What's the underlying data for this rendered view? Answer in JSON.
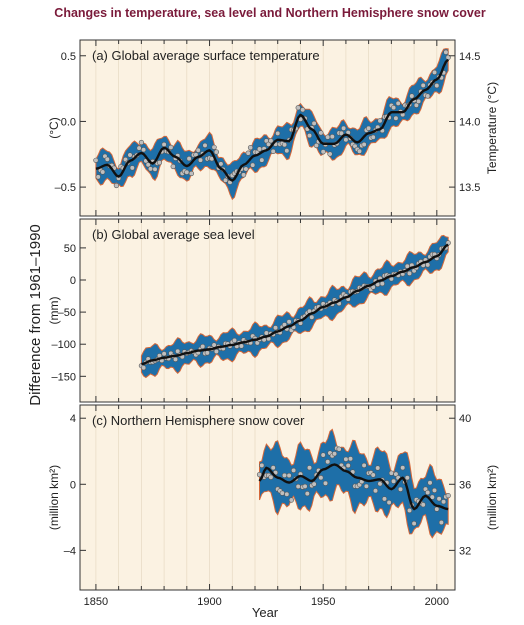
{
  "figure_title": "Changes in temperature, sea level and Northern Hemisphere snow cover",
  "shared_ylabel": "Difference from 1961–1990",
  "shared_xlabel": "Year",
  "x_ticks": [
    "1850",
    "1900",
    "1950",
    "2000"
  ],
  "colors": {
    "panel_bg": "#fbf2e2",
    "band": "#1e6fa8",
    "band_edge": "#d4683a",
    "line": "#111111",
    "point_fill": "#bfbfbf",
    "title": "#7a1a3a"
  },
  "chart_data": [
    {
      "type": "line",
      "title": "(a) Global average surface temperature",
      "ylabel": "(°C)",
      "y2label": "Temperature (°C)",
      "xlim": [
        1843,
        2008
      ],
      "ylim": [
        -0.72,
        0.62
      ],
      "y_ticks": [
        "0.5",
        "0.0",
        "–0.5"
      ],
      "y_tick_values": [
        0.5,
        0.0,
        -0.5
      ],
      "y2_ticks": [
        "14.5",
        "14.0",
        "13.5"
      ],
      "y2_tick_values": [
        0.5,
        0.0,
        -0.5
      ],
      "series": [
        {
          "x": [
            1850,
            1855,
            1860,
            1865,
            1870,
            1875,
            1880,
            1885,
            1890,
            1895,
            1900,
            1905,
            1910,
            1915,
            1920,
            1925,
            1930,
            1935,
            1940,
            1945,
            1950,
            1955,
            1960,
            1965,
            1970,
            1975,
            1980,
            1985,
            1990,
            1995,
            2000,
            2005
          ],
          "values": [
            -0.36,
            -0.33,
            -0.42,
            -0.3,
            -0.24,
            -0.32,
            -0.2,
            -0.27,
            -0.34,
            -0.27,
            -0.22,
            -0.36,
            -0.45,
            -0.33,
            -0.26,
            -0.22,
            -0.14,
            -0.15,
            0.05,
            -0.06,
            -0.17,
            -0.17,
            -0.1,
            -0.16,
            -0.09,
            -0.06,
            0.07,
            0.07,
            0.17,
            0.24,
            0.32,
            0.47
          ]
        }
      ]
    },
    {
      "type": "line",
      "title": "(b) Global average sea level",
      "ylabel": "(mm)",
      "xlim": [
        1843,
        2008
      ],
      "ylim": [
        -190,
        95
      ],
      "y_ticks": [
        "50",
        "0",
        "–50",
        "–100",
        "–150"
      ],
      "y_tick_values": [
        50,
        0,
        -50,
        -100,
        -150
      ],
      "series": [
        {
          "x": [
            1870,
            1875,
            1880,
            1885,
            1890,
            1895,
            1900,
            1905,
            1910,
            1915,
            1920,
            1925,
            1930,
            1935,
            1940,
            1945,
            1950,
            1955,
            1960,
            1965,
            1970,
            1975,
            1980,
            1985,
            1990,
            1995,
            2000,
            2005
          ],
          "values": [
            -131,
            -125,
            -121,
            -118,
            -114,
            -110,
            -108,
            -104,
            -101,
            -97,
            -93,
            -88,
            -80,
            -72,
            -63,
            -52,
            -42,
            -35,
            -27,
            -17,
            -9,
            -1,
            6,
            13,
            20,
            28,
            37,
            55
          ]
        }
      ]
    },
    {
      "type": "line",
      "title": "(c) Northern Hemisphere snow cover",
      "ylabel": "(million km²)",
      "y2label": "(million km²)",
      "xlim": [
        1843,
        2008
      ],
      "ylim": [
        -6.4,
        4.8
      ],
      "y_ticks": [
        "4",
        "0",
        "–4"
      ],
      "y_tick_values": [
        4,
        0,
        -4
      ],
      "y2_ticks": [
        "40",
        "36",
        "32"
      ],
      "y2_tick_values": [
        4,
        0,
        -4
      ],
      "series": [
        {
          "x": [
            1922,
            1925,
            1930,
            1935,
            1940,
            1945,
            1950,
            1955,
            1960,
            1965,
            1970,
            1975,
            1980,
            1985,
            1990,
            1995,
            2000,
            2005
          ],
          "values": [
            0.2,
            1.0,
            0.4,
            0.1,
            0.5,
            0.2,
            0.9,
            1.2,
            0.8,
            0.4,
            0.2,
            0.3,
            -0.3,
            0.4,
            -1.5,
            -0.7,
            -1.3,
            -1.5
          ]
        }
      ]
    }
  ]
}
